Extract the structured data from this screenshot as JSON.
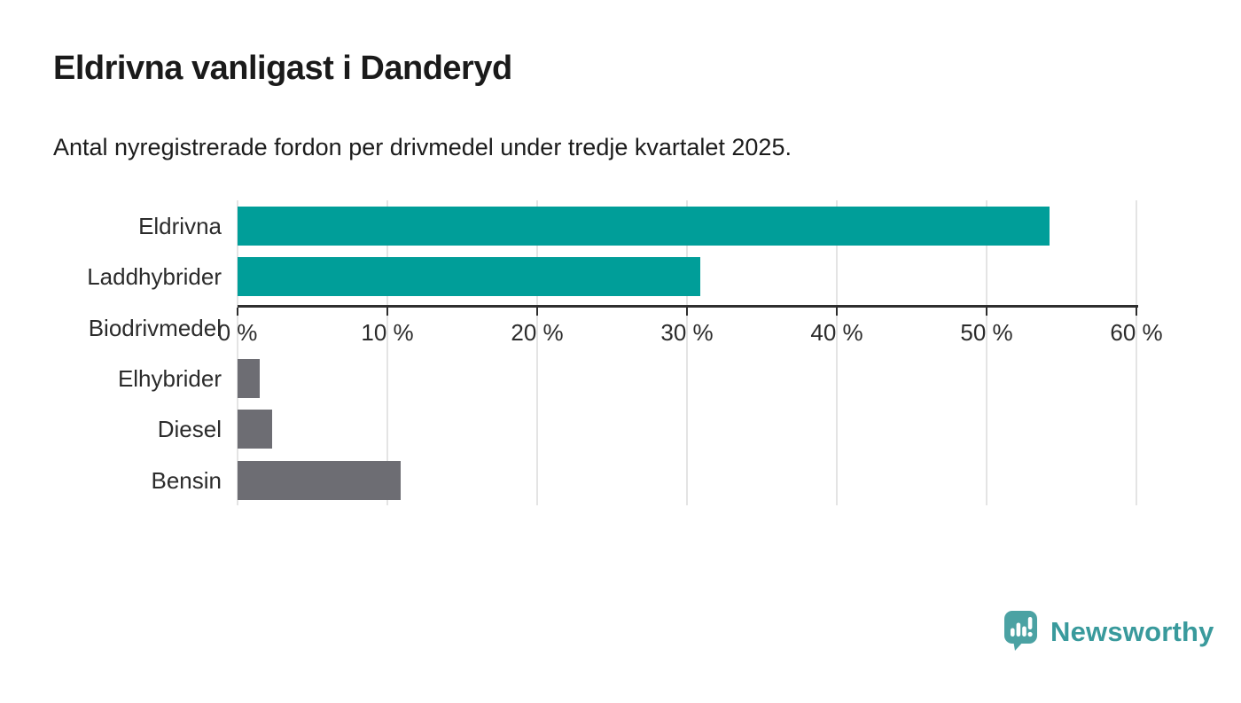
{
  "chart_data": {
    "type": "bar",
    "orientation": "horizontal",
    "title": "Eldrivna vanligast i Danderyd",
    "subtitle": "Antal nyregistrerade fordon per drivmedel under tredje kvartalet 2025.",
    "categories": [
      "Eldrivna",
      "Laddhybrider",
      "Biodrivmedel",
      "Elhybrider",
      "Diesel",
      "Bensin"
    ],
    "values": [
      54.2,
      30.9,
      0,
      1.5,
      2.3,
      10.9
    ],
    "unit": "%",
    "bar_colors": [
      "#009E99",
      "#009E99",
      "#6D6D73",
      "#6D6D73",
      "#6D6D73",
      "#6D6D73"
    ],
    "highlight_color": "#009E99",
    "base_color": "#6D6D73",
    "xlabel": "",
    "ylabel": "",
    "xlim": [
      0,
      60
    ],
    "x_ticks": [
      0,
      10,
      20,
      30,
      40,
      50,
      60
    ],
    "x_tick_labels": [
      "0 %",
      "10 %",
      "20 %",
      "30 %",
      "40 %",
      "50 %",
      "60 %"
    ],
    "grid": true,
    "gridline_color": "#E4E4E4",
    "axis_color": "#2E2E2E",
    "legend_position": "none"
  },
  "footer": {
    "brand": "Newsworthy",
    "brand_color": "#399A9C",
    "icon": "newsworthy-speech-bubble-chart-icon",
    "icon_color": "#4BA2A3"
  }
}
